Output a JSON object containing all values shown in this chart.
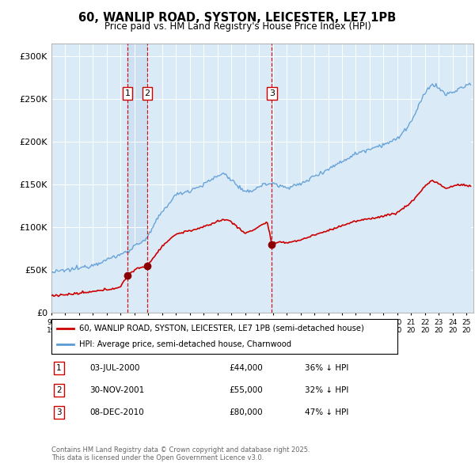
{
  "title": "60, WANLIP ROAD, SYSTON, LEICESTER, LE7 1PB",
  "subtitle": "Price paid vs. HM Land Registry's House Price Index (HPI)",
  "ylabel_ticks": [
    "£0",
    "£50K",
    "£100K",
    "£150K",
    "£200K",
    "£250K",
    "£300K"
  ],
  "ytick_vals": [
    0,
    50000,
    100000,
    150000,
    200000,
    250000,
    300000
  ],
  "ylim": [
    0,
    315000
  ],
  "xlim_start": 1995.3,
  "xlim_end": 2025.5,
  "hpi_color": "#5b9bd5",
  "hpi_fill_color": "#daeaf7",
  "price_color": "#cc0000",
  "sale_marker_color": "#8b0000",
  "vline_color": "#cc0000",
  "shade_color": "#c6dcf0",
  "legend1_label": "60, WANLIP ROAD, SYSTON, LEICESTER, LE7 1PB (semi-detached house)",
  "legend2_label": "HPI: Average price, semi-detached house, Charnwood",
  "sales": [
    {
      "num": 1,
      "date_decimal": 2000.5,
      "price": 44000,
      "label": "03-JUL-2000",
      "price_str": "£44,000",
      "pct": "36% ↓ HPI"
    },
    {
      "num": 2,
      "date_decimal": 2001.92,
      "price": 55000,
      "label": "30-NOV-2001",
      "price_str": "£55,000",
      "pct": "32% ↓ HPI"
    },
    {
      "num": 3,
      "date_decimal": 2010.93,
      "price": 80000,
      "label": "08-DEC-2010",
      "price_str": "£80,000",
      "pct": "47% ↓ HPI"
    }
  ],
  "footer": "Contains HM Land Registry data © Crown copyright and database right 2025.\nThis data is licensed under the Open Government Licence v3.0."
}
